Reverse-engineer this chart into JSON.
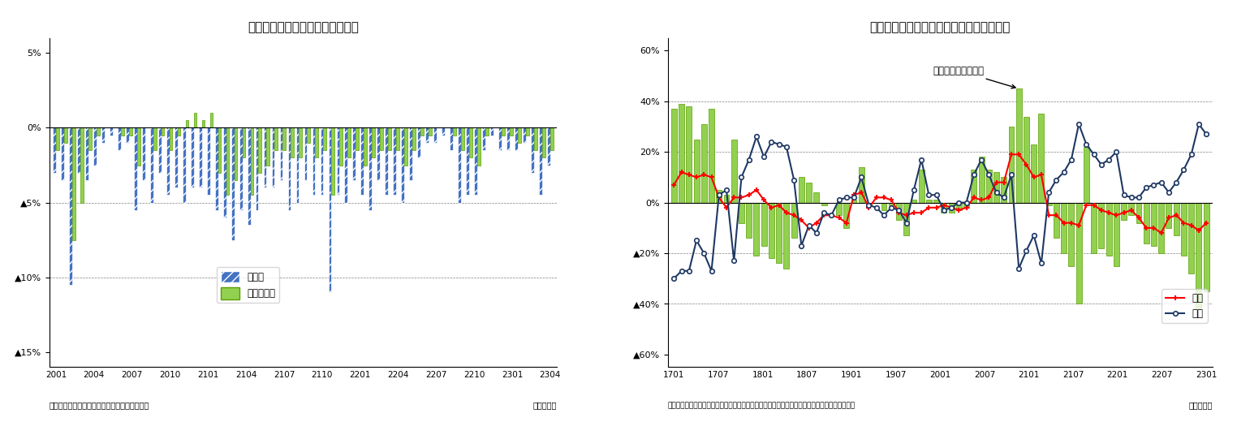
{
  "chart1": {
    "title": "最近の実現率、予測修正率の推移",
    "xlabel_note_left": "（資料）経済産業省「製造工業生産予測指数」",
    "xlabel_note_right": "（年・月）",
    "ytick_vals": [
      5,
      0,
      -5,
      -10,
      -15
    ],
    "ytick_labels": [
      "5%",
      "0%",
      "▲5%",
      "▲10%",
      "▲15%"
    ],
    "xtick_labels": [
      "2001",
      "2004",
      "2007",
      "2010",
      "2101",
      "2104",
      "2107",
      "2110",
      "2201",
      "2204",
      "2207",
      "2210",
      "2301",
      "2304"
    ],
    "ylim": [
      -16,
      6
    ],
    "data_jitsugen": [
      -3.0,
      -3.5,
      -10.5,
      -3.0,
      -3.5,
      -2.5,
      -1.0,
      -0.5,
      -1.5,
      -1.0,
      -5.5,
      -3.5,
      -5.0,
      -3.0,
      -4.5,
      -4.0,
      -5.0,
      -4.0,
      -4.0,
      -4.5,
      -5.5,
      -6.0,
      -7.5,
      -5.5,
      -6.5,
      -5.5,
      -4.0,
      -4.0,
      -3.5,
      -5.5,
      -5.0,
      -3.5,
      -4.5,
      -4.5,
      -11.0,
      -4.5,
      -5.0,
      -3.5,
      -4.5,
      -5.5,
      -3.5,
      -4.5,
      -4.5,
      -5.0,
      -3.5,
      -2.0,
      -1.0,
      -1.0,
      -0.5,
      -1.5,
      -5.0,
      -4.5,
      -4.5,
      -1.5,
      -0.5,
      -1.5,
      -1.5,
      -1.5,
      -1.0,
      -3.0,
      -4.5,
      -2.5
    ],
    "data_yosoku": [
      -1.5,
      -1.0,
      -7.5,
      -5.0,
      -1.5,
      -0.5,
      0.0,
      0.0,
      -0.5,
      -0.5,
      -2.5,
      0.0,
      -1.5,
      -0.5,
      -1.5,
      -0.5,
      0.5,
      1.0,
      0.5,
      1.0,
      -3.0,
      -4.5,
      -3.5,
      -2.0,
      -4.5,
      -3.0,
      -2.5,
      -1.5,
      -1.5,
      -2.0,
      -2.0,
      -1.0,
      -2.0,
      -1.5,
      -4.5,
      -2.5,
      -2.0,
      -1.5,
      -2.5,
      -2.0,
      -1.5,
      -1.5,
      -1.5,
      -2.5,
      -1.5,
      -0.5,
      -0.5,
      0.0,
      0.0,
      -0.5,
      -1.5,
      -2.0,
      -2.5,
      -0.5,
      0.0,
      -0.5,
      -0.5,
      -1.0,
      -0.5,
      -1.5,
      -2.0,
      -1.5
    ]
  },
  "chart2": {
    "title": "電子部品・デバイスの出荷・在庫バランス",
    "xlabel_note_left": "（注）出荷・在庫バランス＝出荷・前年比－在庫・前年比　（資料）経済産業省「鉱工業指数」",
    "xlabel_note_right": "（年・月）",
    "ytick_vals": [
      60,
      40,
      20,
      0,
      -20,
      -40,
      -60
    ],
    "ytick_labels": [
      "60%",
      "40%",
      "20%",
      "0%",
      "▲20%",
      "▲40%",
      "▲60%"
    ],
    "xtick_labels": [
      "1701",
      "1707",
      "1801",
      "1807",
      "1901",
      "1907",
      "2001",
      "2007",
      "2101",
      "2107",
      "2201",
      "2207",
      "2301"
    ],
    "annotation_text": "出荷・在庫バランス",
    "ylim": [
      -65,
      65
    ],
    "data_balance": [
      37,
      39,
      38,
      25,
      31,
      37,
      5,
      3,
      25,
      -8,
      -14,
      -21,
      -17,
      -22,
      -24,
      -26,
      -14,
      10,
      8,
      4,
      -1,
      0,
      -5,
      -10,
      1,
      14,
      -1,
      0,
      -3,
      -1,
      -7,
      -13,
      1,
      13,
      1,
      1,
      -4,
      -4,
      -3,
      -2,
      13,
      18,
      13,
      12,
      10,
      30,
      45,
      34,
      23,
      35,
      -1,
      -14,
      -20,
      -25,
      -40,
      22,
      -20,
      -18,
      -21,
      -25,
      -7,
      -5,
      -8,
      -16,
      -17,
      -20,
      -10,
      -13,
      -21,
      -28,
      -42,
      -35
    ],
    "data_shipment": [
      7,
      12,
      11,
      10,
      11,
      10,
      2,
      -2,
      2,
      2,
      3,
      5,
      1,
      -2,
      -1,
      -4,
      -5,
      -7,
      -10,
      -8,
      -5,
      -5,
      -6,
      -8,
      3,
      4,
      -2,
      2,
      2,
      1,
      -4,
      -5,
      -4,
      -4,
      -2,
      -2,
      -1,
      -2,
      -3,
      -2,
      2,
      1,
      2,
      8,
      8,
      19,
      19,
      15,
      10,
      11,
      -5,
      -5,
      -8,
      -8,
      -9,
      -1,
      -1,
      -3,
      -4,
      -5,
      -4,
      -3,
      -6,
      -10,
      -10,
      -12,
      -6,
      -5,
      -8,
      -9,
      -11,
      -8
    ],
    "data_inventory": [
      -30,
      -27,
      -27,
      -15,
      -20,
      -27,
      3,
      5,
      -23,
      10,
      17,
      26,
      18,
      24,
      23,
      22,
      9,
      -17,
      -9,
      -12,
      -4,
      -5,
      1,
      2,
      2,
      10,
      -1,
      -2,
      -5,
      -2,
      -3,
      -8,
      5,
      17,
      3,
      3,
      -3,
      -2,
      0,
      0,
      11,
      17,
      11,
      4,
      2,
      11,
      -26,
      -19,
      -13,
      -24,
      4,
      9,
      12,
      17,
      31,
      23,
      19,
      15,
      17,
      20,
      3,
      2,
      2,
      6,
      7,
      8,
      4,
      8,
      13,
      19,
      31,
      27
    ]
  }
}
